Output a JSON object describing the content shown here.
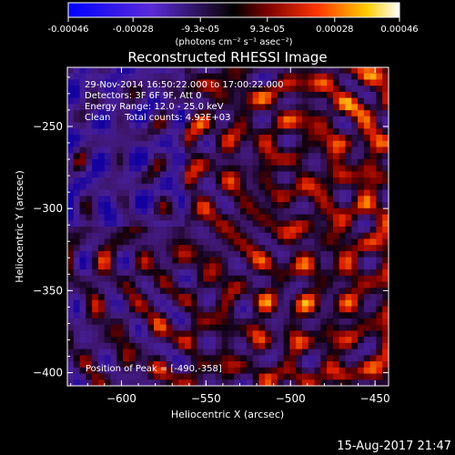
{
  "colorbar": {
    "ticks": [
      "-0.00046",
      "-0.00028",
      "-9.3e-05",
      "9.3e-05",
      "0.00028",
      "0.00046"
    ],
    "tick_values": [
      -0.00046,
      -0.00028,
      -9.3e-05,
      9.3e-05,
      0.00028,
      0.00046
    ],
    "units_label": "(photons cm⁻² s⁻¹ asec⁻²)",
    "range": [
      -0.00046,
      0.00046
    ]
  },
  "chart_data": {
    "type": "heatmap",
    "title": "Reconstructed RHESSI Image",
    "xlabel": "Heliocentric X (arcsec)",
    "ylabel": "Heliocentric Y (arcsec)",
    "xlim": [
      -632,
      -442
    ],
    "ylim": [
      -408,
      -214
    ],
    "xticks": [
      -600,
      -550,
      -500,
      -450
    ],
    "yticks": [
      -250,
      -300,
      -350,
      -400
    ],
    "xtick_labels": [
      "−600",
      "−550",
      "−500",
      "−450"
    ],
    "ytick_labels": [
      "−250",
      "−300",
      "−350",
      "−400"
    ],
    "annotations": [
      "29-Nov-2014 16:50:22.000 to 17:00:22.000",
      "Detectors: 3F 6F 9F, Att 0",
      "Energy Range: 12.0 - 25.0 keV",
      "Clean     Total counts: 4.92E+03",
      "Position of Peak = [-490,-358]"
    ],
    "peak_position": [
      -490,
      -358
    ]
  },
  "footer_timestamp": "15-Aug-2017 21:47"
}
